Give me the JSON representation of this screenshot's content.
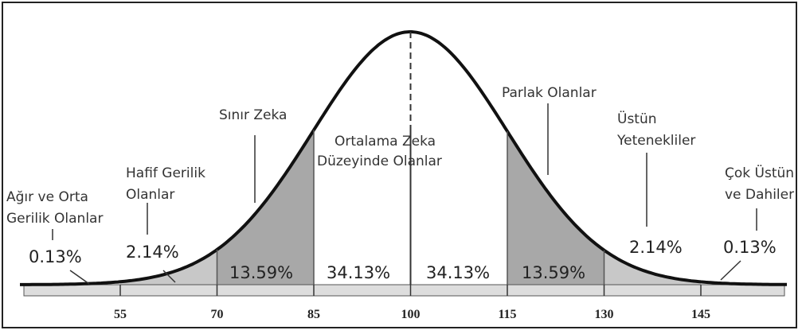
{
  "x_axis": {
    "ticks": [
      55,
      70,
      85,
      100,
      115,
      130,
      145
    ]
  },
  "regions": [
    "0.13%",
    "2.14%",
    "13.59%",
    "34.13%",
    "34.13%",
    "13.59%",
    "2.14%",
    "0.13%"
  ],
  "labels": [
    [
      "Ağır ve Orta",
      "Gerilik Olanlar"
    ],
    [
      "Hafif Gerilik",
      "Olanlar"
    ],
    [
      "Sınır Zeka"
    ],
    [
      "Ortalama Zeka",
      "Düzeyinde Olanlar"
    ],
    [
      "Parlak Olanlar"
    ],
    [
      "Üstün",
      "Yetenekliler"
    ],
    [
      "Çok Üstün",
      "ve Dahiler"
    ]
  ]
}
